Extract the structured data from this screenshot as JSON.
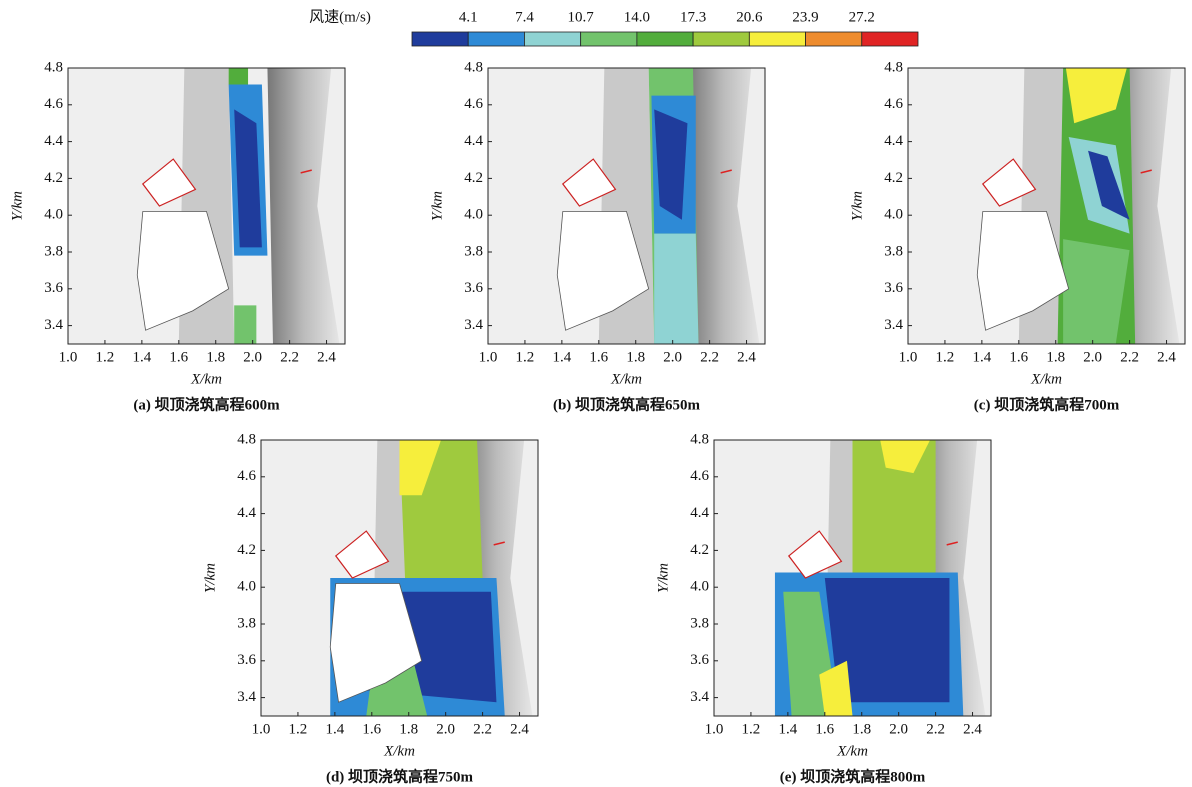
{
  "colorbar": {
    "label": "风速(m/s)",
    "ticks": [
      4.1,
      7.4,
      10.7,
      {
        "value": 14,
        "label": "14.0"
      },
      17.3,
      20.6,
      23.9,
      27.2
    ],
    "colors": [
      "#1f3c9c",
      "#2e8ad6",
      "#8fd3d3",
      "#72c36c",
      "#52ad3c",
      "#9fca3e",
      "#f6ee3c",
      "#ee8c2e",
      "#e02424"
    ]
  },
  "chart_data": [
    {
      "type": "contour",
      "caption": "(a) 坝顶浇筑高程600m",
      "x_label": "X/km",
      "y_label": "Y/km",
      "xlim": [
        1.0,
        2.5
      ],
      "ylim": [
        3.3,
        4.8
      ],
      "xticks": [
        {
          "value": 1,
          "label": "1.0"
        },
        1.2,
        1.4,
        1.6,
        1.8,
        {
          "value": 2,
          "label": "2.0"
        },
        2.2,
        2.4
      ],
      "yticks": [
        3.4,
        3.6,
        3.8,
        {
          "value": 4,
          "label": "4.0"
        },
        4.2,
        4.4,
        4.6,
        4.8
      ]
    },
    {
      "type": "contour",
      "caption": "(b) 坝顶浇筑高程650m",
      "x_label": "X/km",
      "y_label": "Y/km",
      "xlim": [
        1.0,
        2.5
      ],
      "ylim": [
        3.3,
        4.8
      ],
      "xticks": [
        {
          "value": 1,
          "label": "1.0"
        },
        1.2,
        1.4,
        1.6,
        1.8,
        {
          "value": 2,
          "label": "2.0"
        },
        2.2,
        2.4
      ],
      "yticks": [
        3.4,
        3.6,
        3.8,
        {
          "value": 4,
          "label": "4.0"
        },
        4.2,
        4.4,
        4.6,
        4.8
      ]
    },
    {
      "type": "contour",
      "caption": "(c) 坝顶浇筑高程700m",
      "x_label": "X/km",
      "y_label": "Y/km",
      "xlim": [
        1.0,
        2.5
      ],
      "ylim": [
        3.3,
        4.8
      ],
      "xticks": [
        {
          "value": 1,
          "label": "1.0"
        },
        1.2,
        1.4,
        1.6,
        1.8,
        {
          "value": 2,
          "label": "2.0"
        },
        2.2,
        2.4
      ],
      "yticks": [
        3.4,
        3.6,
        3.8,
        {
          "value": 4,
          "label": "4.0"
        },
        4.2,
        4.4,
        4.6,
        4.8
      ]
    },
    {
      "type": "contour",
      "caption": "(d) 坝顶浇筑高程750m",
      "x_label": "X/km",
      "y_label": "Y/km",
      "xlim": [
        1.0,
        2.5
      ],
      "ylim": [
        3.3,
        4.8
      ],
      "xticks": [
        {
          "value": 1,
          "label": "1.0"
        },
        1.2,
        1.4,
        1.6,
        1.8,
        {
          "value": 2,
          "label": "2.0"
        },
        2.2,
        2.4
      ],
      "yticks": [
        3.4,
        3.6,
        3.8,
        {
          "value": 4,
          "label": "4.0"
        },
        4.2,
        4.4,
        4.6,
        4.8
      ]
    },
    {
      "type": "contour",
      "caption": "(e) 坝顶浇筑高程800m",
      "x_label": "X/km",
      "y_label": "Y/km",
      "xlim": [
        1.0,
        2.5
      ],
      "ylim": [
        3.3,
        4.8
      ],
      "xticks": [
        {
          "value": 1,
          "label": "1.0"
        },
        1.2,
        1.4,
        1.6,
        1.8,
        {
          "value": 2,
          "label": "2.0"
        },
        2.2,
        2.4
      ],
      "yticks": [
        3.4,
        3.6,
        3.8,
        {
          "value": 4,
          "label": "4.0"
        },
        4.2,
        4.4,
        4.6,
        4.8
      ]
    }
  ]
}
